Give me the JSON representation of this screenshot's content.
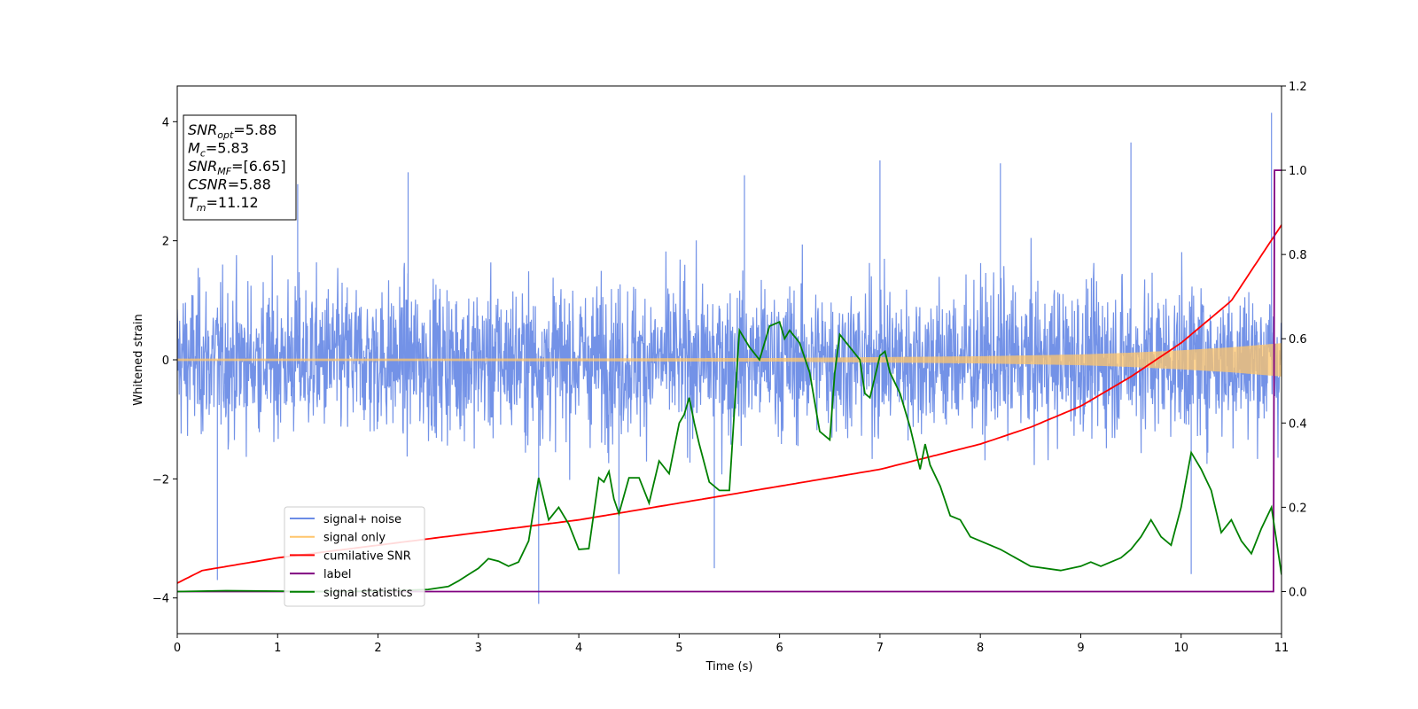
{
  "chart_data": {
    "type": "line",
    "xlabel": "Time (s)",
    "ylabel": "Whitened strain",
    "xlim": [
      0,
      11
    ],
    "ylim_left": [
      -4.6,
      4.6
    ],
    "ylim_right": [
      -0.1,
      1.2
    ],
    "x_ticks": [
      "0",
      "1",
      "2",
      "3",
      "4",
      "5",
      "6",
      "7",
      "8",
      "9",
      "10",
      "11"
    ],
    "y_ticks_left": [
      "−4",
      "−2",
      "0",
      "2",
      "4"
    ],
    "y_ticks_right": [
      "0.0",
      "0.2",
      "0.4",
      "0.6",
      "0.8",
      "1.0",
      "1.2"
    ],
    "annotation": {
      "lines": [
        {
          "base": "SNR",
          "sub": "opt",
          "value": "=5.88"
        },
        {
          "base": "M",
          "sub": "c",
          "value": "=5.83"
        },
        {
          "base": "SNR",
          "sub": "MF",
          "value": "=[6.65]"
        },
        {
          "base": "CSNR",
          "sub": "",
          "value": "=5.88"
        },
        {
          "base": "T",
          "sub": "m",
          "value": "=11.12"
        }
      ]
    },
    "legend": {
      "placement": "lower-left",
      "entries": [
        {
          "label": "signal+ noise",
          "color": "#6b8ce6"
        },
        {
          "label": "signal only",
          "color": "#ffc56b"
        },
        {
          "label": "cumilative SNR",
          "color": "#ff0000"
        },
        {
          "label": "label",
          "color": "#800080"
        },
        {
          "label": "signal statistics",
          "color": "#008000"
        }
      ]
    },
    "series": [
      {
        "name": "signal+ noise",
        "axis": "left",
        "color": "#6b8ce6",
        "kind": "noise",
        "typical_range": [
          -2.5,
          2.6
        ],
        "extremes": [
          {
            "x": 0.4,
            "y": -3.7
          },
          {
            "x": 2.3,
            "y": 3.15
          },
          {
            "x": 3.6,
            "y": -4.1
          },
          {
            "x": 5.65,
            "y": 3.1
          },
          {
            "x": 7.0,
            "y": 3.35
          },
          {
            "x": 9.5,
            "y": 3.65
          },
          {
            "x": 10.9,
            "y": 4.15
          },
          {
            "x": 10.1,
            "y": -3.6
          },
          {
            "x": 4.4,
            "y": -3.6
          },
          {
            "x": 5.35,
            "y": -3.5
          },
          {
            "x": 1.2,
            "y": 2.95
          },
          {
            "x": 8.2,
            "y": 3.3
          }
        ]
      },
      {
        "name": "signal only",
        "axis": "left",
        "color": "#ffc56b",
        "kind": "envelope",
        "x": [
          0,
          3,
          6,
          8,
          9,
          9.5,
          10,
          10.5,
          11
        ],
        "amplitude": [
          0.02,
          0.02,
          0.03,
          0.06,
          0.09,
          0.12,
          0.16,
          0.21,
          0.28
        ]
      },
      {
        "name": "cumilative SNR",
        "axis": "right",
        "color": "#ff0000",
        "x": [
          0,
          0.25,
          0.5,
          1,
          2,
          3,
          4,
          5,
          6,
          7,
          7.5,
          8,
          8.5,
          9,
          9.5,
          10,
          10.5,
          11
        ],
        "y": [
          0.02,
          0.05,
          0.06,
          0.08,
          0.11,
          0.14,
          0.17,
          0.21,
          0.25,
          0.29,
          0.32,
          0.35,
          0.39,
          0.44,
          0.51,
          0.59,
          0.69,
          0.87
        ]
      },
      {
        "name": "label",
        "axis": "right",
        "color": "#800080",
        "x": [
          0,
          10.92,
          10.93,
          11
        ],
        "y": [
          0,
          0,
          1.0,
          1.0
        ]
      },
      {
        "name": "signal statistics",
        "axis": "right",
        "color": "#008000",
        "x": [
          0,
          0.5,
          1,
          1.5,
          2,
          2.5,
          2.7,
          2.8,
          2.9,
          3.0,
          3.1,
          3.2,
          3.3,
          3.4,
          3.5,
          3.6,
          3.7,
          3.8,
          3.9,
          4.0,
          4.1,
          4.2,
          4.25,
          4.3,
          4.35,
          4.4,
          4.5,
          4.6,
          4.7,
          4.8,
          4.9,
          5.0,
          5.05,
          5.1,
          5.15,
          5.2,
          5.3,
          5.4,
          5.5,
          5.6,
          5.7,
          5.8,
          5.9,
          6.0,
          6.05,
          6.1,
          6.2,
          6.3,
          6.4,
          6.5,
          6.55,
          6.6,
          6.7,
          6.8,
          6.85,
          6.9,
          7.0,
          7.05,
          7.1,
          7.2,
          7.3,
          7.4,
          7.45,
          7.5,
          7.6,
          7.7,
          7.8,
          7.9,
          8.0,
          8.2,
          8.5,
          8.8,
          9.0,
          9.1,
          9.2,
          9.3,
          9.4,
          9.5,
          9.6,
          9.7,
          9.8,
          9.9,
          10.0,
          10.1,
          10.2,
          10.3,
          10.4,
          10.5,
          10.6,
          10.7,
          10.8,
          10.9,
          11.0
        ],
        "y": [
          0.0,
          0.002,
          0.001,
          0.0,
          0.001,
          0.005,
          0.012,
          0.025,
          0.04,
          0.055,
          0.078,
          0.072,
          0.06,
          0.07,
          0.12,
          0.27,
          0.17,
          0.2,
          0.16,
          0.1,
          0.102,
          0.27,
          0.26,
          0.285,
          0.22,
          0.185,
          0.27,
          0.27,
          0.21,
          0.31,
          0.28,
          0.4,
          0.42,
          0.46,
          0.4,
          0.35,
          0.26,
          0.24,
          0.24,
          0.62,
          0.58,
          0.55,
          0.63,
          0.64,
          0.6,
          0.62,
          0.59,
          0.52,
          0.38,
          0.36,
          0.52,
          0.61,
          0.58,
          0.55,
          0.47,
          0.46,
          0.56,
          0.57,
          0.52,
          0.47,
          0.39,
          0.29,
          0.35,
          0.3,
          0.25,
          0.18,
          0.17,
          0.13,
          0.12,
          0.1,
          0.06,
          0.05,
          0.06,
          0.07,
          0.06,
          0.07,
          0.08,
          0.1,
          0.13,
          0.17,
          0.13,
          0.11,
          0.2,
          0.33,
          0.29,
          0.24,
          0.14,
          0.17,
          0.12,
          0.09,
          0.15,
          0.2,
          0.04
        ]
      }
    ]
  }
}
